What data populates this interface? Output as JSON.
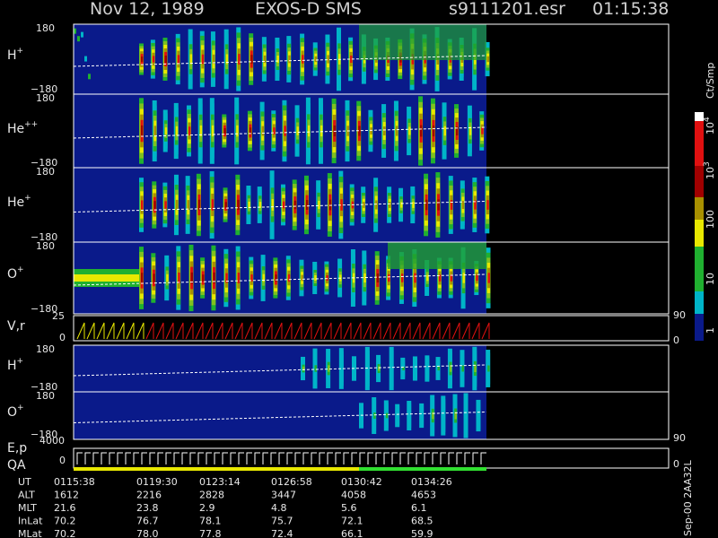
{
  "header": {
    "date": "Nov 12, 1989",
    "instrument": "EXOS-D SMS",
    "file": "s9111201.esr",
    "time": "01:15:38"
  },
  "panels": [
    {
      "label": "H",
      "sup": "+",
      "top": "180",
      "bottom": "−180"
    },
    {
      "label": "He",
      "sup": "++",
      "top": "180",
      "bottom": "−180"
    },
    {
      "label": "He",
      "sup": "+",
      "top": "180",
      "bottom": "−180"
    },
    {
      "label": "O",
      "sup": "+",
      "top": "180",
      "bottom": "−180"
    },
    {
      "label": "H",
      "sup": "+",
      "top": "180",
      "bottom": "−180"
    },
    {
      "label": "O",
      "sup": "+",
      "top": "180",
      "bottom": "−180"
    }
  ],
  "vr": {
    "label": "V,r",
    "top": "25",
    "zero": "0",
    "right_top": "90",
    "right_bottom": "0"
  },
  "ep": {
    "label": "E,p",
    "label2": "QA",
    "top": "4000",
    "zero": "0",
    "right_top": "90",
    "right_bottom": "0"
  },
  "colorbar": {
    "unit": "Ct/Smp",
    "e4_base": "10",
    "e4_exp": "4",
    "e3_base": "10",
    "e3_exp": "3",
    "l100": "100",
    "l10": "10",
    "l1": "1"
  },
  "footer": {
    "rows": [
      [
        "UT",
        "0115:38",
        "0119:30",
        "0123:14",
        "0126:58",
        "0130:42",
        "0134:26"
      ],
      [
        "ALT",
        "1612",
        "2216",
        "2828",
        "3447",
        "4058",
        "4653"
      ],
      [
        "MLT",
        "21.6",
        "23.8",
        "2.9",
        "4.8",
        "5.6",
        "6.1"
      ],
      [
        "InLat",
        "70.2",
        "76.7",
        "78.1",
        "75.7",
        "72.1",
        "68.5"
      ],
      [
        "MLat",
        "70.2",
        "78.0",
        "77.8",
        "72.4",
        "66.1",
        "59.9"
      ]
    ]
  },
  "side_label": "Sep-00 2AA32L"
}
